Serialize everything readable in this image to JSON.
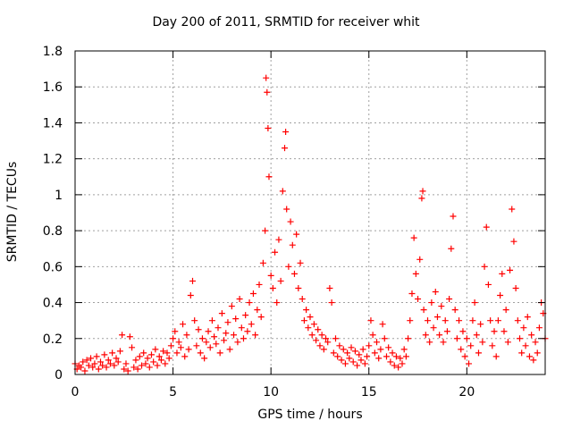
{
  "chart_data": {
    "type": "scatter",
    "title": "Day 200 of 2011, SRMTID for receiver whit",
    "xlabel": "GPS time / hours",
    "ylabel": "SRMTID / TECUs",
    "xlim": [
      0,
      24
    ],
    "ylim": [
      0,
      1.8
    ],
    "x_ticks": [
      0,
      5,
      10,
      15,
      20
    ],
    "y_ticks": [
      0,
      0.2,
      0.4,
      0.6,
      0.8,
      1,
      1.2,
      1.4,
      1.6,
      1.8
    ],
    "x_tick_labels": [
      "0",
      "5",
      "10",
      "15",
      "20"
    ],
    "y_tick_labels": [
      "0",
      "0.2",
      "0.4",
      "0.6",
      "0.8",
      "1",
      "1.2",
      "1.4",
      "1.6",
      "1.8"
    ],
    "grid": true,
    "marker": "+",
    "marker_color": "#ff0000",
    "series": [
      {
        "name": "SRMTID",
        "points": [
          [
            0.0,
            0.06
          ],
          [
            0.1,
            0.03
          ],
          [
            0.2,
            0.05
          ],
          [
            0.3,
            0.04
          ],
          [
            0.4,
            0.07
          ],
          [
            0.5,
            0.02
          ],
          [
            0.6,
            0.08
          ],
          [
            0.7,
            0.05
          ],
          [
            0.8,
            0.09
          ],
          [
            0.9,
            0.04
          ],
          [
            1.0,
            0.06
          ],
          [
            1.1,
            0.1
          ],
          [
            1.2,
            0.03
          ],
          [
            1.3,
            0.07
          ],
          [
            1.4,
            0.05
          ],
          [
            1.5,
            0.11
          ],
          [
            1.6,
            0.04
          ],
          [
            1.7,
            0.08
          ],
          [
            1.8,
            0.06
          ],
          [
            1.9,
            0.12
          ],
          [
            2.0,
            0.05
          ],
          [
            2.1,
            0.09
          ],
          [
            2.2,
            0.07
          ],
          [
            2.3,
            0.13
          ],
          [
            2.4,
            0.22
          ],
          [
            2.5,
            0.03
          ],
          [
            2.6,
            0.06
          ],
          [
            2.7,
            0.02
          ],
          [
            2.8,
            0.21
          ],
          [
            2.9,
            0.15
          ],
          [
            3.0,
            0.04
          ],
          [
            3.1,
            0.08
          ],
          [
            3.2,
            0.03
          ],
          [
            3.3,
            0.1
          ],
          [
            3.4,
            0.05
          ],
          [
            3.5,
            0.12
          ],
          [
            3.6,
            0.06
          ],
          [
            3.7,
            0.09
          ],
          [
            3.8,
            0.04
          ],
          [
            3.9,
            0.11
          ],
          [
            4.0,
            0.07
          ],
          [
            4.1,
            0.14
          ],
          [
            4.2,
            0.05
          ],
          [
            4.3,
            0.1
          ],
          [
            4.4,
            0.08
          ],
          [
            4.5,
            0.13
          ],
          [
            4.6,
            0.06
          ],
          [
            4.7,
            0.12
          ],
          [
            4.8,
            0.09
          ],
          [
            4.9,
            0.16
          ],
          [
            5.0,
            0.2
          ],
          [
            5.1,
            0.24
          ],
          [
            5.2,
            0.12
          ],
          [
            5.3,
            0.18
          ],
          [
            5.4,
            0.15
          ],
          [
            5.5,
            0.28
          ],
          [
            5.6,
            0.1
          ],
          [
            5.7,
            0.22
          ],
          [
            5.8,
            0.14
          ],
          [
            5.9,
            0.44
          ],
          [
            6.0,
            0.52
          ],
          [
            6.1,
            0.3
          ],
          [
            6.2,
            0.16
          ],
          [
            6.3,
            0.25
          ],
          [
            6.4,
            0.12
          ],
          [
            6.5,
            0.2
          ],
          [
            6.6,
            0.09
          ],
          [
            6.7,
            0.18
          ],
          [
            6.8,
            0.24
          ],
          [
            6.9,
            0.15
          ],
          [
            7.0,
            0.3
          ],
          [
            7.1,
            0.21
          ],
          [
            7.2,
            0.17
          ],
          [
            7.3,
            0.26
          ],
          [
            7.4,
            0.12
          ],
          [
            7.5,
            0.34
          ],
          [
            7.6,
            0.19
          ],
          [
            7.7,
            0.23
          ],
          [
            7.8,
            0.29
          ],
          [
            7.9,
            0.14
          ],
          [
            8.0,
            0.38
          ],
          [
            8.1,
            0.22
          ],
          [
            8.2,
            0.31
          ],
          [
            8.3,
            0.18
          ],
          [
            8.4,
            0.42
          ],
          [
            8.5,
            0.26
          ],
          [
            8.6,
            0.2
          ],
          [
            8.7,
            0.33
          ],
          [
            8.8,
            0.24
          ],
          [
            8.9,
            0.4
          ],
          [
            9.0,
            0.28
          ],
          [
            9.1,
            0.45
          ],
          [
            9.2,
            0.22
          ],
          [
            9.3,
            0.36
          ],
          [
            9.4,
            0.5
          ],
          [
            9.5,
            0.32
          ],
          [
            9.6,
            0.62
          ],
          [
            9.7,
            0.8
          ],
          [
            9.75,
            1.65
          ],
          [
            9.8,
            1.57
          ],
          [
            9.85,
            1.37
          ],
          [
            9.9,
            1.1
          ],
          [
            10.0,
            0.55
          ],
          [
            10.1,
            0.48
          ],
          [
            10.2,
            0.68
          ],
          [
            10.3,
            0.4
          ],
          [
            10.4,
            0.75
          ],
          [
            10.5,
            0.52
          ],
          [
            10.6,
            1.02
          ],
          [
            10.7,
            1.26
          ],
          [
            10.75,
            1.35
          ],
          [
            10.8,
            0.92
          ],
          [
            10.9,
            0.6
          ],
          [
            11.0,
            0.85
          ],
          [
            11.1,
            0.72
          ],
          [
            11.2,
            0.56
          ],
          [
            11.3,
            0.78
          ],
          [
            11.4,
            0.48
          ],
          [
            11.5,
            0.62
          ],
          [
            11.6,
            0.42
          ],
          [
            11.7,
            0.3
          ],
          [
            11.8,
            0.36
          ],
          [
            11.9,
            0.26
          ],
          [
            12.0,
            0.32
          ],
          [
            12.1,
            0.22
          ],
          [
            12.2,
            0.28
          ],
          [
            12.3,
            0.19
          ],
          [
            12.4,
            0.25
          ],
          [
            12.5,
            0.16
          ],
          [
            12.6,
            0.22
          ],
          [
            12.7,
            0.14
          ],
          [
            12.8,
            0.2
          ],
          [
            12.9,
            0.18
          ],
          [
            13.0,
            0.48
          ],
          [
            13.1,
            0.4
          ],
          [
            13.2,
            0.12
          ],
          [
            13.3,
            0.2
          ],
          [
            13.4,
            0.1
          ],
          [
            13.5,
            0.16
          ],
          [
            13.6,
            0.08
          ],
          [
            13.7,
            0.14
          ],
          [
            13.8,
            0.06
          ],
          [
            13.9,
            0.12
          ],
          [
            14.0,
            0.09
          ],
          [
            14.1,
            0.15
          ],
          [
            14.2,
            0.07
          ],
          [
            14.3,
            0.13
          ],
          [
            14.4,
            0.05
          ],
          [
            14.5,
            0.11
          ],
          [
            14.6,
            0.08
          ],
          [
            14.7,
            0.14
          ],
          [
            14.8,
            0.06
          ],
          [
            14.9,
            0.1
          ],
          [
            15.0,
            0.16
          ],
          [
            15.1,
            0.3
          ],
          [
            15.2,
            0.22
          ],
          [
            15.3,
            0.12
          ],
          [
            15.4,
            0.18
          ],
          [
            15.5,
            0.09
          ],
          [
            15.6,
            0.14
          ],
          [
            15.7,
            0.28
          ],
          [
            15.8,
            0.2
          ],
          [
            15.9,
            0.1
          ],
          [
            16.0,
            0.15
          ],
          [
            16.1,
            0.07
          ],
          [
            16.2,
            0.12
          ],
          [
            16.3,
            0.05
          ],
          [
            16.4,
            0.1
          ],
          [
            16.5,
            0.04
          ],
          [
            16.6,
            0.09
          ],
          [
            16.7,
            0.06
          ],
          [
            16.8,
            0.14
          ],
          [
            16.9,
            0.1
          ],
          [
            17.0,
            0.2
          ],
          [
            17.1,
            0.3
          ],
          [
            17.2,
            0.45
          ],
          [
            17.3,
            0.76
          ],
          [
            17.4,
            0.56
          ],
          [
            17.5,
            0.42
          ],
          [
            17.6,
            0.64
          ],
          [
            17.7,
            0.98
          ],
          [
            17.75,
            1.02
          ],
          [
            17.8,
            0.36
          ],
          [
            17.9,
            0.22
          ],
          [
            18.0,
            0.3
          ],
          [
            18.1,
            0.18
          ],
          [
            18.2,
            0.4
          ],
          [
            18.3,
            0.26
          ],
          [
            18.4,
            0.46
          ],
          [
            18.5,
            0.32
          ],
          [
            18.6,
            0.22
          ],
          [
            18.7,
            0.38
          ],
          [
            18.8,
            0.18
          ],
          [
            18.9,
            0.3
          ],
          [
            19.0,
            0.24
          ],
          [
            19.1,
            0.42
          ],
          [
            19.2,
            0.7
          ],
          [
            19.3,
            0.88
          ],
          [
            19.4,
            0.36
          ],
          [
            19.5,
            0.2
          ],
          [
            19.6,
            0.3
          ],
          [
            19.7,
            0.14
          ],
          [
            19.8,
            0.24
          ],
          [
            19.9,
            0.1
          ],
          [
            20.0,
            0.2
          ],
          [
            20.1,
            0.06
          ],
          [
            20.2,
            0.16
          ],
          [
            20.3,
            0.3
          ],
          [
            20.4,
            0.4
          ],
          [
            20.5,
            0.22
          ],
          [
            20.6,
            0.12
          ],
          [
            20.7,
            0.28
          ],
          [
            20.8,
            0.18
          ],
          [
            20.9,
            0.6
          ],
          [
            21.0,
            0.82
          ],
          [
            21.1,
            0.5
          ],
          [
            21.2,
            0.3
          ],
          [
            21.3,
            0.16
          ],
          [
            21.4,
            0.24
          ],
          [
            21.5,
            0.1
          ],
          [
            21.6,
            0.3
          ],
          [
            21.7,
            0.44
          ],
          [
            21.8,
            0.56
          ],
          [
            21.9,
            0.24
          ],
          [
            22.0,
            0.36
          ],
          [
            22.1,
            0.18
          ],
          [
            22.2,
            0.58
          ],
          [
            22.3,
            0.92
          ],
          [
            22.4,
            0.74
          ],
          [
            22.5,
            0.48
          ],
          [
            22.6,
            0.3
          ],
          [
            22.7,
            0.2
          ],
          [
            22.8,
            0.12
          ],
          [
            22.9,
            0.26
          ],
          [
            23.0,
            0.16
          ],
          [
            23.1,
            0.32
          ],
          [
            23.2,
            0.1
          ],
          [
            23.3,
            0.22
          ],
          [
            23.4,
            0.08
          ],
          [
            23.5,
            0.18
          ],
          [
            23.6,
            0.12
          ],
          [
            23.7,
            0.26
          ],
          [
            23.8,
            0.4
          ],
          [
            23.9,
            0.34
          ],
          [
            24.0,
            0.2
          ]
        ]
      }
    ]
  }
}
